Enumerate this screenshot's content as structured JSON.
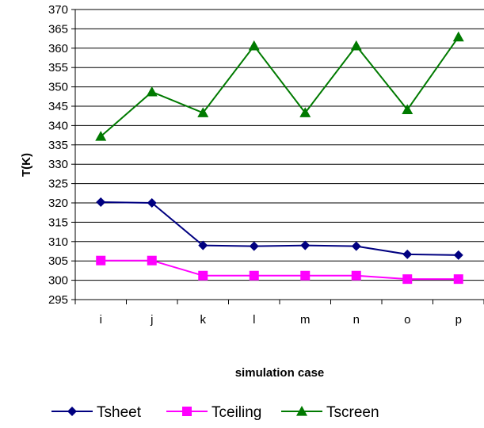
{
  "chart_data": {
    "type": "line",
    "categories": [
      "i",
      "j",
      "k",
      "l",
      "m",
      "n",
      "o",
      "p"
    ],
    "xlabel": "simulation case",
    "ylabel": "T(K)",
    "ylim": [
      295,
      370
    ],
    "ytick_step": 5,
    "grid": "horizontal",
    "legend_position": "bottom",
    "series": [
      {
        "name": "Tsheet",
        "color": "#000080",
        "marker": "diamond",
        "values": [
          320.2,
          320.0,
          309.0,
          308.8,
          309.0,
          308.8,
          306.7,
          306.5
        ]
      },
      {
        "name": "Tceiling",
        "color": "#FF00FF",
        "marker": "square",
        "values": [
          305.1,
          305.1,
          301.2,
          301.2,
          301.2,
          301.2,
          300.3,
          300.3
        ]
      },
      {
        "name": "Tscreen",
        "color": "#007A00",
        "marker": "triangle",
        "values": [
          337.2,
          348.7,
          343.3,
          360.6,
          343.3,
          360.6,
          344.1,
          362.9
        ]
      }
    ]
  }
}
